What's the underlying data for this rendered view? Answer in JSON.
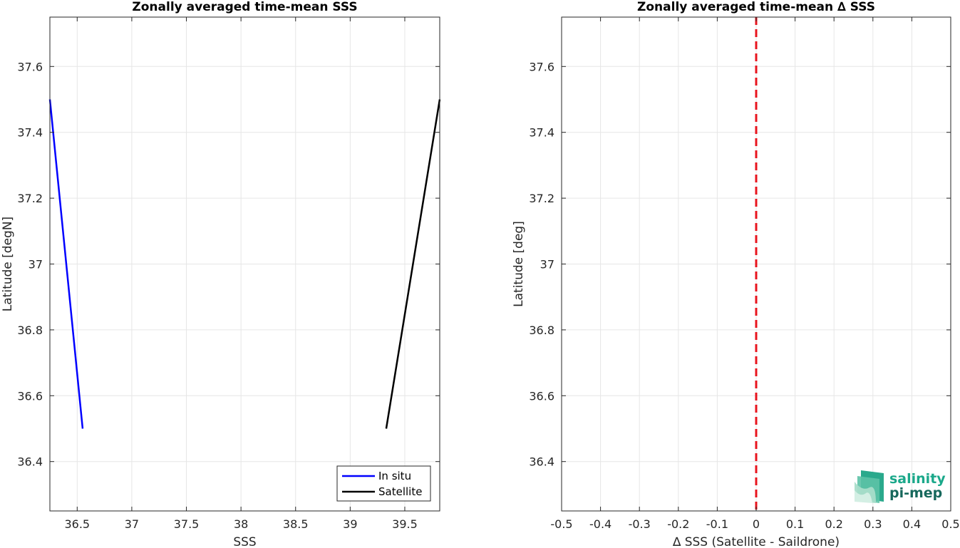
{
  "chart_data": [
    {
      "type": "line",
      "title": "Zonally averaged time-mean SSS",
      "xlabel": "SSS",
      "ylabel": "Latitude [degN]",
      "xlim": [
        36.25,
        39.82
      ],
      "ylim": [
        36.25,
        37.75
      ],
      "xticks": [
        36.5,
        37,
        37.5,
        38,
        38.5,
        39,
        39.5
      ],
      "xtick_labels": [
        "36.5",
        "37",
        "37.5",
        "38",
        "38.5",
        "39",
        "39.5"
      ],
      "yticks": [
        36.4,
        36.6,
        36.8,
        37,
        37.2,
        37.4,
        37.6
      ],
      "ytick_labels": [
        "36.4",
        "36.6",
        "36.8",
        "37",
        "37.2",
        "37.4",
        "37.6"
      ],
      "grid": true,
      "legend_position": "bottom-right",
      "series": [
        {
          "name": "In situ",
          "color": "#0000ff",
          "x": [
            36.25,
            36.55
          ],
          "y": [
            37.5,
            36.5
          ]
        },
        {
          "name": "Satellite",
          "color": "#000000",
          "x": [
            39.33,
            39.82
          ],
          "y": [
            36.5,
            37.5
          ]
        }
      ]
    },
    {
      "type": "line",
      "title": "Zonally averaged time-mean ∆ SSS",
      "xlabel": "∆ SSS (Satellite - Saildrone)",
      "ylabel": "Latitude [deg]",
      "xlim": [
        -0.5,
        0.5
      ],
      "ylim": [
        36.25,
        37.75
      ],
      "xticks": [
        -0.5,
        -0.4,
        -0.3,
        -0.2,
        -0.1,
        0,
        0.1,
        0.2,
        0.3,
        0.4,
        0.5
      ],
      "xtick_labels": [
        "-0.5",
        "-0.4",
        "-0.3",
        "-0.2",
        "-0.1",
        "0",
        "0.1",
        "0.2",
        "0.3",
        "0.4",
        "0.5"
      ],
      "yticks": [
        36.4,
        36.6,
        36.8,
        37,
        37.2,
        37.4,
        37.6
      ],
      "ytick_labels": [
        "36.4",
        "36.6",
        "36.8",
        "37",
        "37.2",
        "37.4",
        "37.6"
      ],
      "grid": true,
      "reference_line": {
        "x": 0,
        "style": "dashed",
        "color": "#e8141e"
      }
    }
  ],
  "logo": {
    "line1": "salinity",
    "line2": "pi-mep",
    "color1": "#1aa88a",
    "color2": "#17685c"
  }
}
